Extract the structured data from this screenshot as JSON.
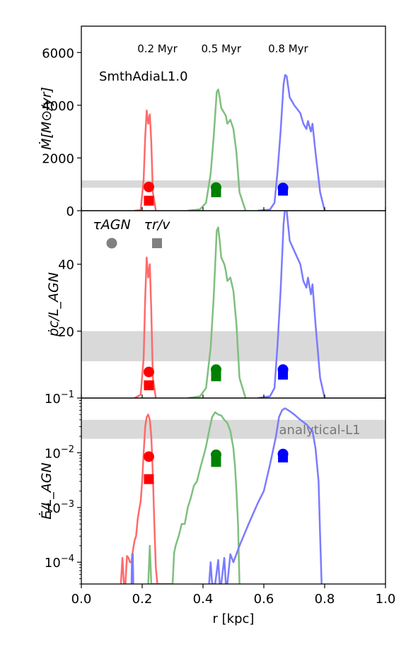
{
  "chart_data": [
    {
      "type": "line",
      "panel": "top",
      "ylabel": "Ṁ[M⊙/yr]",
      "xlim": [
        0.0,
        1.0
      ],
      "ylim": [
        0,
        7000
      ],
      "yscale": "linear",
      "yticks": [
        0,
        2000,
        4000,
        6000
      ],
      "ytick_labels": [
        "0",
        "2000",
        "4000",
        "6000"
      ],
      "text_label": "SmthAdiaL1.0",
      "time_labels": [
        {
          "x": 0.25,
          "text": "0.2 Myr"
        },
        {
          "x": 0.46,
          "text": "0.5 Myr"
        },
        {
          "x": 0.68,
          "text": "0.8 Myr"
        }
      ],
      "band": [
        870,
        1150
      ],
      "series": [
        {
          "time": "0.2 Myr",
          "color": "#ff6a6a",
          "x": [
            0.175,
            0.195,
            0.205,
            0.21,
            0.215,
            0.22,
            0.225,
            0.23,
            0.235,
            0.245
          ],
          "y": [
            0,
            20,
            1200,
            2800,
            3800,
            3300,
            3650,
            2600,
            700,
            0
          ]
        },
        {
          "time": "0.5 Myr",
          "color": "#7fbf7f",
          "x": [
            0.35,
            0.39,
            0.41,
            0.425,
            0.435,
            0.445,
            0.45,
            0.455,
            0.46,
            0.47,
            0.475,
            0.48,
            0.49,
            0.5,
            0.51,
            0.52,
            0.54
          ],
          "y": [
            0,
            50,
            300,
            1400,
            2800,
            4500,
            4600,
            4300,
            3900,
            3700,
            3600,
            3300,
            3450,
            3100,
            2200,
            700,
            0
          ]
        },
        {
          "time": "0.8 Myr",
          "color": "#7b7bff",
          "x": [
            0.58,
            0.62,
            0.635,
            0.645,
            0.655,
            0.665,
            0.67,
            0.675,
            0.685,
            0.69,
            0.7,
            0.71,
            0.72,
            0.73,
            0.74,
            0.745,
            0.755,
            0.76,
            0.77,
            0.785,
            0.8
          ],
          "y": [
            0,
            40,
            300,
            1500,
            3000,
            4800,
            5150,
            5100,
            4300,
            4200,
            4000,
            3850,
            3700,
            3300,
            3100,
            3400,
            3000,
            3300,
            2200,
            700,
            0
          ]
        }
      ],
      "markers": [
        {
          "time": "0.2 Myr",
          "x": 0.222,
          "circle": 900,
          "square": 380,
          "color": "#ff0000"
        },
        {
          "time": "0.5 Myr",
          "x": 0.443,
          "circle": 880,
          "square": 700,
          "color": "#008000"
        },
        {
          "time": "0.8 Myr",
          "x": 0.663,
          "circle": 860,
          "square": 760,
          "color": "#0000ff"
        }
      ]
    },
    {
      "type": "line",
      "panel": "middle",
      "ylabel": "ṗc/L_AGN",
      "xlim": [
        0.0,
        1.0
      ],
      "ylim": [
        0,
        56
      ],
      "yscale": "linear",
      "yticks": [
        20,
        40
      ],
      "ytick_labels": [
        "20",
        "40"
      ],
      "band": [
        11,
        20
      ],
      "legend": [
        {
          "label": "τAGN",
          "marker": "circle",
          "color": "#808080"
        },
        {
          "label": "τr/v",
          "marker": "square",
          "color": "#808080"
        }
      ],
      "series": [
        {
          "time": "0.2 Myr",
          "color": "#ff6a6a",
          "x": [
            0.175,
            0.195,
            0.205,
            0.21,
            0.215,
            0.22,
            0.225,
            0.23,
            0.235,
            0.245
          ],
          "y": [
            0,
            1,
            12,
            30,
            42,
            36,
            40,
            26,
            6,
            0
          ]
        },
        {
          "time": "0.5 Myr",
          "color": "#7fbf7f",
          "x": [
            0.35,
            0.39,
            0.41,
            0.425,
            0.435,
            0.445,
            0.45,
            0.455,
            0.46,
            0.47,
            0.475,
            0.48,
            0.49,
            0.5,
            0.51,
            0.52,
            0.54
          ],
          "y": [
            0,
            0.5,
            3,
            15,
            30,
            50,
            51,
            47,
            42,
            40,
            38,
            35,
            36,
            32,
            22,
            6,
            0
          ]
        },
        {
          "time": "0.8 Myr",
          "color": "#7b7bff",
          "x": [
            0.58,
            0.62,
            0.635,
            0.645,
            0.655,
            0.665,
            0.67,
            0.675,
            0.685,
            0.69,
            0.7,
            0.71,
            0.72,
            0.73,
            0.74,
            0.745,
            0.755,
            0.76,
            0.77,
            0.785,
            0.8
          ],
          "y": [
            0,
            0.5,
            3,
            16,
            32,
            52,
            57,
            56,
            47,
            46,
            44,
            42,
            40,
            35,
            33,
            36,
            31,
            34,
            22,
            6,
            0
          ]
        }
      ],
      "markers": [
        {
          "time": "0.2 Myr",
          "x": 0.222,
          "circle": 7.8,
          "square": 3.8,
          "color": "#ff0000"
        },
        {
          "time": "0.5 Myr",
          "x": 0.443,
          "circle": 8.5,
          "square": 6.5,
          "color": "#008000"
        },
        {
          "time": "0.8 Myr",
          "x": 0.663,
          "circle": 8.5,
          "square": 7.0,
          "color": "#0000ff"
        }
      ]
    },
    {
      "type": "line",
      "panel": "bottom",
      "ylabel": "Ė/L_AGN",
      "xlabel": "r [kpc]",
      "xlim": [
        0.0,
        1.0
      ],
      "xticks": [
        0.0,
        0.2,
        0.4,
        0.6,
        0.8,
        1.0
      ],
      "xtick_labels": [
        "0.0",
        "0.2",
        "0.4",
        "0.6",
        "0.8",
        "1.0"
      ],
      "ylim": [
        4e-05,
        0.1
      ],
      "yscale": "log",
      "ytick_labels": [
        {
          "base": "10",
          "exp": "−1"
        },
        {
          "base": "10",
          "exp": "−2"
        },
        {
          "base": "10",
          "exp": "−3"
        },
        {
          "base": "10",
          "exp": "−4"
        }
      ],
      "yticks": [
        0.1,
        0.01,
        0.001,
        0.0001
      ],
      "band": [
        0.018,
        0.04
      ],
      "band_label": "analytical-L1",
      "series": [
        {
          "time": "0.2 Myr",
          "color": "#ff6a6a",
          "x": [
            0.13,
            0.135,
            0.14,
            0.145,
            0.15,
            0.155,
            0.16,
            0.165,
            0.17,
            0.175,
            0.18,
            0.185,
            0.19,
            0.195,
            0.2,
            0.205,
            0.21,
            0.215,
            0.22,
            0.225,
            0.23,
            0.235,
            0.24,
            0.245,
            0.25
          ],
          "y": [
            4e-05,
            0.00012,
            4e-05,
            4e-05,
            0.00013,
            0.00012,
            0.0001,
            0.0001,
            0.00017,
            0.00025,
            0.0003,
            0.0006,
            0.0009,
            0.0013,
            0.003,
            0.01,
            0.03,
            0.045,
            0.05,
            0.04,
            0.02,
            0.004,
            0.0005,
            8e-05,
            4e-05
          ]
        },
        {
          "time": "0.2 Myr b",
          "color": "#7b7bff",
          "x": [
            0.165,
            0.167,
            0.169,
            0.171
          ],
          "y": [
            4e-05,
            0.00014,
            0.00014,
            4e-05
          ]
        },
        {
          "time": "0.5 Myr",
          "color": "#7fbf7f",
          "x": [
            0.22,
            0.225,
            0.23,
            0.3,
            0.305,
            0.31,
            0.32,
            0.33,
            0.34,
            0.35,
            0.36,
            0.37,
            0.38,
            0.39,
            0.4,
            0.41,
            0.42,
            0.43,
            0.44,
            0.45,
            0.46,
            0.47,
            0.48,
            0.49,
            0.5,
            0.505,
            0.51,
            0.515,
            0.52
          ],
          "y": [
            4e-05,
            0.0002,
            4e-05,
            4e-05,
            0.00015,
            0.0002,
            0.0003,
            0.0005,
            0.0005,
            0.001,
            0.0015,
            0.0025,
            0.003,
            0.005,
            0.008,
            0.013,
            0.025,
            0.045,
            0.055,
            0.05,
            0.048,
            0.04,
            0.035,
            0.025,
            0.012,
            0.006,
            0.002,
            0.0005,
            4e-05
          ]
        },
        {
          "time": "0.8 Myr",
          "color": "#7b7bff",
          "x": [
            0.42,
            0.425,
            0.43,
            0.44,
            0.45,
            0.455,
            0.46,
            0.47,
            0.475,
            0.48,
            0.49,
            0.5,
            0.52,
            0.55,
            0.58,
            0.6,
            0.62,
            0.64,
            0.65,
            0.66,
            0.67,
            0.68,
            0.69,
            0.7,
            0.72,
            0.74,
            0.76,
            0.77,
            0.78,
            0.785,
            0.79
          ],
          "y": [
            4e-05,
            0.0001,
            4e-05,
            4e-05,
            0.00011,
            4e-05,
            4e-05,
            0.00012,
            4e-05,
            4e-05,
            0.00014,
            0.0001,
            0.0002,
            0.0005,
            0.0012,
            0.002,
            0.006,
            0.02,
            0.045,
            0.06,
            0.065,
            0.06,
            0.055,
            0.05,
            0.04,
            0.033,
            0.025,
            0.012,
            0.003,
            0.0003,
            4e-05
          ]
        }
      ],
      "markers": [
        {
          "time": "0.2 Myr",
          "x": 0.222,
          "circle": 0.0085,
          "square": 0.0033,
          "color": "#ff0000"
        },
        {
          "time": "0.5 Myr",
          "x": 0.443,
          "circle": 0.0092,
          "square": 0.0068,
          "color": "#008000"
        },
        {
          "time": "0.8 Myr",
          "x": 0.663,
          "circle": 0.0095,
          "square": 0.0082,
          "color": "#0000ff"
        }
      ]
    }
  ]
}
